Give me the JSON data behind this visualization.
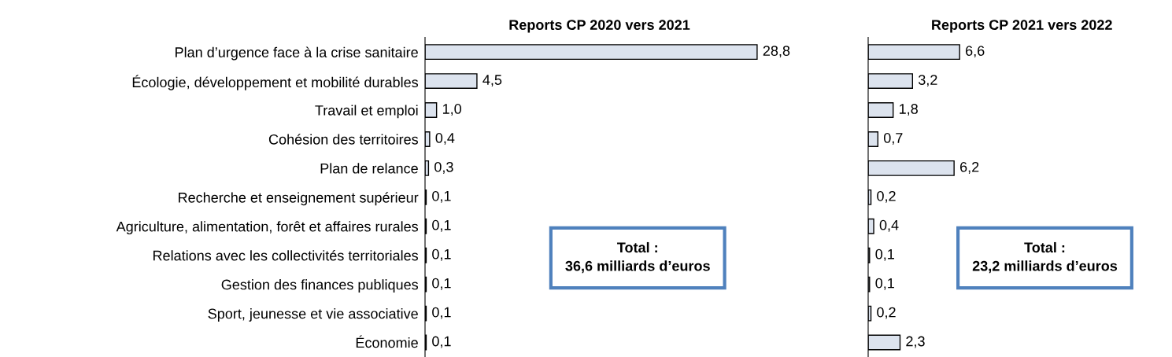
{
  "chart_data": [
    {
      "type": "bar",
      "orientation": "horizontal",
      "title": "Reports CP 2020 vers 2021",
      "categories": [
        "Plan d’urgence face à la crise sanitaire",
        "Écologie, développement et mobilité durables",
        "Travail et emploi",
        "Cohésion des territoires",
        "Plan de relance",
        "Recherche et enseignement supérieur",
        "Agriculture, alimentation, forêt et affaires rurales",
        "Relations avec les collectivités territoriales",
        "Gestion des finances publiques",
        "Sport, jeunesse et vie associative",
        "Économie"
      ],
      "values": [
        28.8,
        4.5,
        1.0,
        0.4,
        0.3,
        0.1,
        0.1,
        0.1,
        0.1,
        0.1,
        0.1
      ],
      "value_labels": [
        "28,8",
        "4,5",
        "1,0",
        "0,4",
        "0,3",
        "0,1",
        "0,1",
        "0,1",
        "0,1",
        "0,1",
        "0,1"
      ],
      "color": "#dce3ee",
      "tick_labels": "y",
      "grid": false,
      "legend": false,
      "annotations": [
        "Total :\n36,6 milliards d’euros"
      ]
    },
    {
      "type": "bar",
      "orientation": "horizontal",
      "title": "Reports CP 2021 vers 2022",
      "categories": [
        null,
        null,
        null,
        null,
        null,
        null,
        null,
        null,
        null,
        null,
        null
      ],
      "values": [
        6.6,
        3.2,
        1.8,
        0.7,
        6.2,
        0.2,
        0.4,
        0.1,
        0.1,
        0.2,
        2.3
      ],
      "value_labels": [
        "6,6",
        "3,2",
        "1,8",
        "0,7",
        "6,2",
        "0,2",
        "0,4",
        "0,1",
        "0,1",
        "0,2",
        "2,3"
      ],
      "color": "#dce3ee",
      "tick_labels": false,
      "grid": false,
      "legend": false,
      "annotations": [
        "Total :\n23,2 milliards d’euros"
      ]
    }
  ]
}
